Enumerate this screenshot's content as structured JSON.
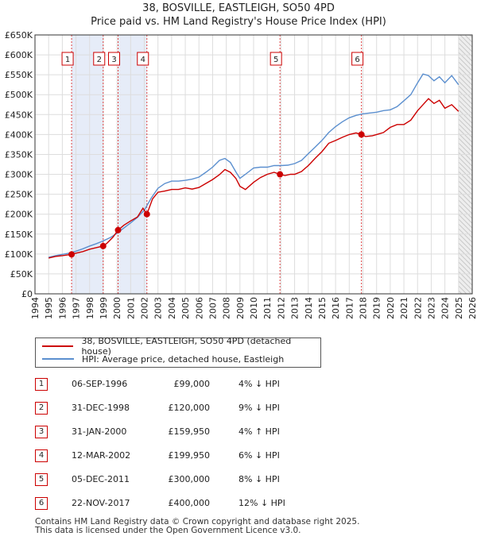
{
  "chart_data": {
    "type": "line",
    "title": "38, BOSVILLE, EASTLEIGH, SO50 4PD",
    "subtitle": "Price paid vs. HM Land Registry's House Price Index (HPI)",
    "xlim": [
      1994,
      2026
    ],
    "ylim": [
      0,
      650000
    ],
    "x_ticks": [
      1994,
      1995,
      1996,
      1997,
      1998,
      1999,
      2000,
      2001,
      2002,
      2003,
      2004,
      2005,
      2006,
      2007,
      2008,
      2009,
      2010,
      2011,
      2012,
      2013,
      2014,
      2015,
      2016,
      2017,
      2018,
      2019,
      2020,
      2021,
      2022,
      2023,
      2024,
      2025,
      2026
    ],
    "y_ticks": [
      0,
      50000,
      100000,
      150000,
      200000,
      250000,
      300000,
      350000,
      400000,
      450000,
      500000,
      550000,
      600000,
      650000
    ],
    "y_tick_labels": [
      "£0",
      "£50K",
      "£100K",
      "£150K",
      "£200K",
      "£250K",
      "£300K",
      "£350K",
      "£400K",
      "£450K",
      "£500K",
      "£550K",
      "£600K",
      "£650K"
    ],
    "shaded_periods": [
      [
        1996.68,
        1998.99
      ],
      [
        2000.08,
        2002.19
      ]
    ],
    "forecast_start": 2025.0,
    "series": [
      {
        "name": "38, BOSVILLE, EASTLEIGH, SO50 4PD (detached house)",
        "color": "#cc0000",
        "x": [
          1995.0,
          1995.5,
          1996.0,
          1996.68,
          1997.0,
          1997.5,
          1998.0,
          1998.5,
          1998.99,
          1999.3,
          1999.7,
          2000.08,
          2000.5,
          2001.0,
          2001.5,
          2001.9,
          2002.19,
          2002.6,
          2003.0,
          2003.5,
          2004.0,
          2004.5,
          2005.0,
          2005.5,
          2006.0,
          2006.5,
          2007.0,
          2007.5,
          2007.9,
          2008.3,
          2008.7,
          2009.0,
          2009.4,
          2010.0,
          2010.5,
          2011.0,
          2011.5,
          2011.93,
          2012.3,
          2012.7,
          2013.0,
          2013.5,
          2014.0,
          2014.5,
          2015.0,
          2015.5,
          2016.0,
          2016.5,
          2017.0,
          2017.5,
          2017.89,
          2018.2,
          2018.7,
          2019.0,
          2019.5,
          2020.0,
          2020.5,
          2021.0,
          2021.5,
          2022.0,
          2022.4,
          2022.8,
          2023.2,
          2023.6,
          2024.0,
          2024.5,
          2025.0
        ],
        "values": [
          90000,
          94000,
          96000,
          99000,
          102000,
          106000,
          112000,
          116000,
          120000,
          128000,
          142000,
          159950,
          172000,
          183000,
          193000,
          215000,
          199950,
          238000,
          255000,
          258000,
          262000,
          262000,
          266000,
          263000,
          267000,
          277000,
          287000,
          299000,
          312000,
          305000,
          290000,
          270000,
          262000,
          280000,
          292000,
          300000,
          305000,
          300000,
          297000,
          300000,
          300000,
          307000,
          322000,
          340000,
          357000,
          378000,
          385000,
          393000,
          400000,
          404000,
          400000,
          395000,
          397000,
          400000,
          405000,
          418000,
          425000,
          425000,
          436000,
          460000,
          475000,
          490000,
          478000,
          486000,
          466000,
          475000,
          458000
        ]
      },
      {
        "name": "HPI: Average price, detached house, Eastleigh",
        "color": "#5b8fcf",
        "x": [
          1995.0,
          1995.5,
          1996.0,
          1996.5,
          1997.0,
          1997.5,
          1998.0,
          1998.5,
          1999.0,
          1999.5,
          2000.0,
          2000.5,
          2001.0,
          2001.5,
          2002.0,
          2002.5,
          2003.0,
          2003.5,
          2004.0,
          2004.5,
          2005.0,
          2005.5,
          2006.0,
          2006.5,
          2007.0,
          2007.5,
          2007.9,
          2008.3,
          2008.7,
          2009.0,
          2009.4,
          2010.0,
          2010.5,
          2011.0,
          2011.5,
          2012.0,
          2012.5,
          2013.0,
          2013.5,
          2014.0,
          2014.5,
          2015.0,
          2015.5,
          2016.0,
          2016.5,
          2017.0,
          2017.5,
          2018.0,
          2018.5,
          2019.0,
          2019.5,
          2020.0,
          2020.5,
          2021.0,
          2021.5,
          2022.0,
          2022.4,
          2022.8,
          2023.2,
          2023.6,
          2024.0,
          2024.5,
          2025.0
        ],
        "values": [
          92000,
          96000,
          99000,
          102000,
          107000,
          113000,
          120000,
          126000,
          133000,
          141000,
          152000,
          165000,
          178000,
          192000,
          210000,
          240000,
          265000,
          277000,
          283000,
          283000,
          285000,
          288000,
          293000,
          305000,
          318000,
          335000,
          340000,
          330000,
          306000,
          290000,
          300000,
          316000,
          318000,
          318000,
          322000,
          322000,
          323000,
          327000,
          335000,
          352000,
          368000,
          385000,
          405000,
          420000,
          432000,
          442000,
          448000,
          452000,
          454000,
          456000,
          460000,
          462000,
          470000,
          485000,
          500000,
          530000,
          552000,
          548000,
          535000,
          545000,
          530000,
          548000,
          525000
        ]
      }
    ],
    "sales": [
      {
        "num": "1",
        "date": "06-SEP-1996",
        "price": "£99,000",
        "hpi": "4% ↓ HPI",
        "x": 1996.68,
        "value": 99000
      },
      {
        "num": "2",
        "date": "31-DEC-1998",
        "price": "£120,000",
        "hpi": "9% ↓ HPI",
        "x": 1998.99,
        "value": 120000
      },
      {
        "num": "3",
        "date": "31-JAN-2000",
        "price": "£159,950",
        "hpi": "4% ↑ HPI",
        "x": 2000.08,
        "value": 159950
      },
      {
        "num": "4",
        "date": "12-MAR-2002",
        "price": "£199,950",
        "hpi": "6% ↓ HPI",
        "x": 2002.19,
        "value": 199950
      },
      {
        "num": "5",
        "date": "05-DEC-2011",
        "price": "£300,000",
        "hpi": "8% ↓ HPI",
        "x": 2011.93,
        "value": 300000
      },
      {
        "num": "6",
        "date": "22-NOV-2017",
        "price": "£400,000",
        "hpi": "12% ↓ HPI",
        "x": 2017.89,
        "value": 400000
      }
    ]
  },
  "legend": {
    "property_label": "38, BOSVILLE, EASTLEIGH, SO50 4PD (detached house)",
    "hpi_label": "HPI: Average price, detached house, Eastleigh"
  },
  "footer": {
    "line1": "Contains HM Land Registry data © Crown copyright and database right 2025.",
    "line2": "This data is licensed under the Open Government Licence v3.0."
  }
}
